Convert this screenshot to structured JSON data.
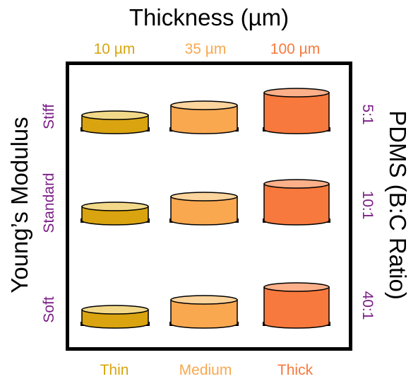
{
  "top_axis": {
    "title": "Thickness (µm)"
  },
  "columns": [
    {
      "top_label": "10 µm",
      "bottom_label": "Thin",
      "color": "#d9a40f",
      "top_color": "#f2d98a"
    },
    {
      "top_label": "35 µm",
      "bottom_label": "Medium",
      "color": "#f9a850",
      "top_color": "#fcd49d"
    },
    {
      "top_label": "100 µm",
      "bottom_label": "Thick",
      "color": "#f7793d",
      "top_color": "#fbb08a"
    }
  ],
  "left_axis": {
    "title": "Young’s Modulus"
  },
  "right_axis": {
    "title": "PDMS (B:C Ratio)"
  },
  "rows": [
    {
      "left_label": "Stiff",
      "right_label": "5:1"
    },
    {
      "left_label": "Standard",
      "right_label": "10:1"
    },
    {
      "left_label": "Soft",
      "right_label": "40:1"
    }
  ],
  "colors": {
    "label_purple": "#7b1f86",
    "disc_outline": "#000000",
    "frame": "#000000"
  }
}
